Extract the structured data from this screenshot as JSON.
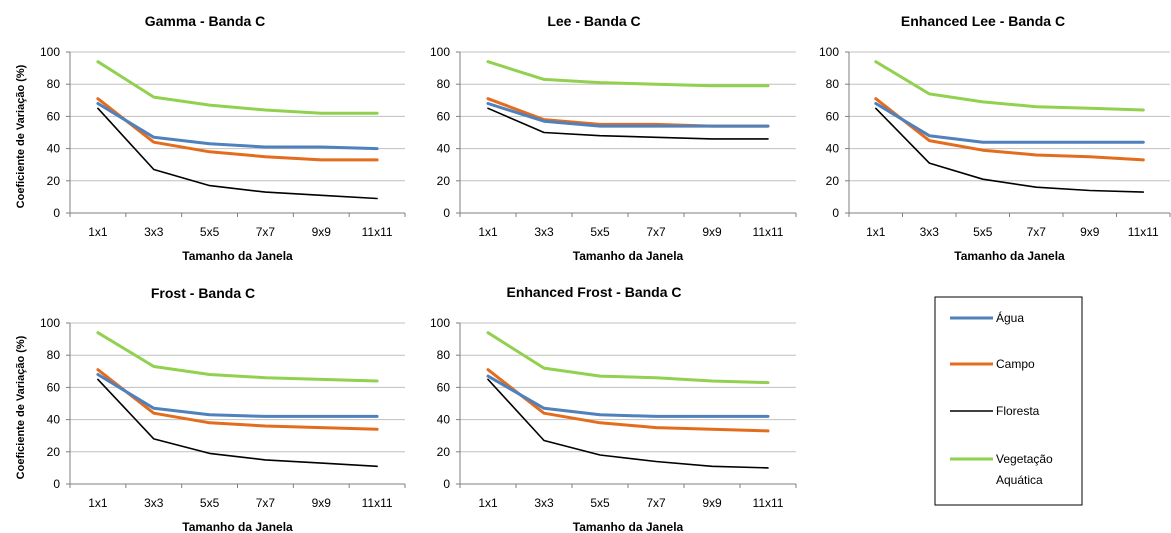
{
  "colors": {
    "agua": "#4f81bd",
    "campo": "#e46c1d",
    "floresta": "#000000",
    "vegetacao": "#92d050",
    "grid": "#c0c0c0",
    "axis": "#7f7f7f"
  },
  "legend": {
    "entries": [
      "Água",
      "Campo",
      "Floresta",
      "Vegetação Aquática"
    ],
    "placement": "bottom-right"
  },
  "chart_data": [
    {
      "type": "line",
      "title": "Gamma - Banda C",
      "xlabel": "Tamanho da Janela",
      "ylabel": "Coeficiente de Variação  (%)",
      "categories": [
        "1x1",
        "3x3",
        "5x5",
        "7x7",
        "9x9",
        "11x11"
      ],
      "ylim": [
        0,
        100
      ],
      "yticks": [
        0,
        20,
        40,
        60,
        80,
        100
      ],
      "grid": true,
      "series": [
        {
          "name": "Água",
          "values": [
            68,
            47,
            43,
            41,
            41,
            40
          ]
        },
        {
          "name": "Campo",
          "values": [
            71,
            44,
            38,
            35,
            33,
            33
          ]
        },
        {
          "name": "Floresta",
          "values": [
            65,
            27,
            17,
            13,
            11,
            9
          ]
        },
        {
          "name": "Vegetação Aquática",
          "values": [
            94,
            72,
            67,
            64,
            62,
            62
          ]
        }
      ]
    },
    {
      "type": "line",
      "title": "Lee - Banda C",
      "xlabel": "Tamanho da Janela",
      "ylabel": "",
      "categories": [
        "1x1",
        "3x3",
        "5x5",
        "7x7",
        "9x9",
        "11x11"
      ],
      "ylim": [
        0,
        100
      ],
      "yticks": [
        0,
        20,
        40,
        60,
        80,
        100
      ],
      "grid": true,
      "series": [
        {
          "name": "Água",
          "values": [
            68,
            57,
            54,
            54,
            54,
            54
          ]
        },
        {
          "name": "Campo",
          "values": [
            71,
            58,
            55,
            55,
            54,
            54
          ]
        },
        {
          "name": "Floresta",
          "values": [
            65,
            50,
            48,
            47,
            46,
            46
          ]
        },
        {
          "name": "Vegetação Aquática",
          "values": [
            94,
            83,
            81,
            80,
            79,
            79
          ]
        }
      ]
    },
    {
      "type": "line",
      "title": "Enhanced Lee - Banda C",
      "xlabel": "Tamanho da Janela",
      "ylabel": "",
      "categories": [
        "1x1",
        "3x3",
        "5x5",
        "7x7",
        "9x9",
        "11x11"
      ],
      "ylim": [
        0,
        100
      ],
      "yticks": [
        0,
        20,
        40,
        60,
        80,
        100
      ],
      "grid": true,
      "series": [
        {
          "name": "Água",
          "values": [
            68,
            48,
            44,
            44,
            44,
            44
          ]
        },
        {
          "name": "Campo",
          "values": [
            71,
            45,
            39,
            36,
            35,
            33
          ]
        },
        {
          "name": "Floresta",
          "values": [
            65,
            31,
            21,
            16,
            14,
            13
          ]
        },
        {
          "name": "Vegetação Aquática",
          "values": [
            94,
            74,
            69,
            66,
            65,
            64
          ]
        }
      ]
    },
    {
      "type": "line",
      "title": "Frost - Banda C",
      "xlabel": "Tamanho da Janela",
      "ylabel": "Coeficiente de Variação  (%)",
      "categories": [
        "1x1",
        "3x3",
        "5x5",
        "7x7",
        "9x9",
        "11x11"
      ],
      "ylim": [
        0,
        100
      ],
      "yticks": [
        0,
        20,
        40,
        60,
        80,
        100
      ],
      "grid": true,
      "series": [
        {
          "name": "Água",
          "values": [
            68,
            47,
            43,
            42,
            42,
            42
          ]
        },
        {
          "name": "Campo",
          "values": [
            71,
            44,
            38,
            36,
            35,
            34
          ]
        },
        {
          "name": "Floresta",
          "values": [
            65,
            28,
            19,
            15,
            13,
            11
          ]
        },
        {
          "name": "Vegetação Aquática",
          "values": [
            94,
            73,
            68,
            66,
            65,
            64
          ]
        }
      ]
    },
    {
      "type": "line",
      "title": "Enhanced Frost - Banda C",
      "xlabel": "Tamanho da Janela",
      "ylabel": "",
      "categories": [
        "1x1",
        "3x3",
        "5x5",
        "7x7",
        "9x9",
        "11x11"
      ],
      "ylim": [
        0,
        100
      ],
      "yticks": [
        0,
        20,
        40,
        60,
        80,
        100
      ],
      "grid": true,
      "series": [
        {
          "name": "Água",
          "values": [
            67,
            47,
            43,
            42,
            42,
            42
          ]
        },
        {
          "name": "Campo",
          "values": [
            71,
            44,
            38,
            35,
            34,
            33
          ]
        },
        {
          "name": "Floresta",
          "values": [
            65,
            27,
            18,
            14,
            11,
            10
          ]
        },
        {
          "name": "Vegetação Aquática",
          "values": [
            94,
            72,
            67,
            66,
            64,
            63
          ]
        }
      ]
    }
  ]
}
